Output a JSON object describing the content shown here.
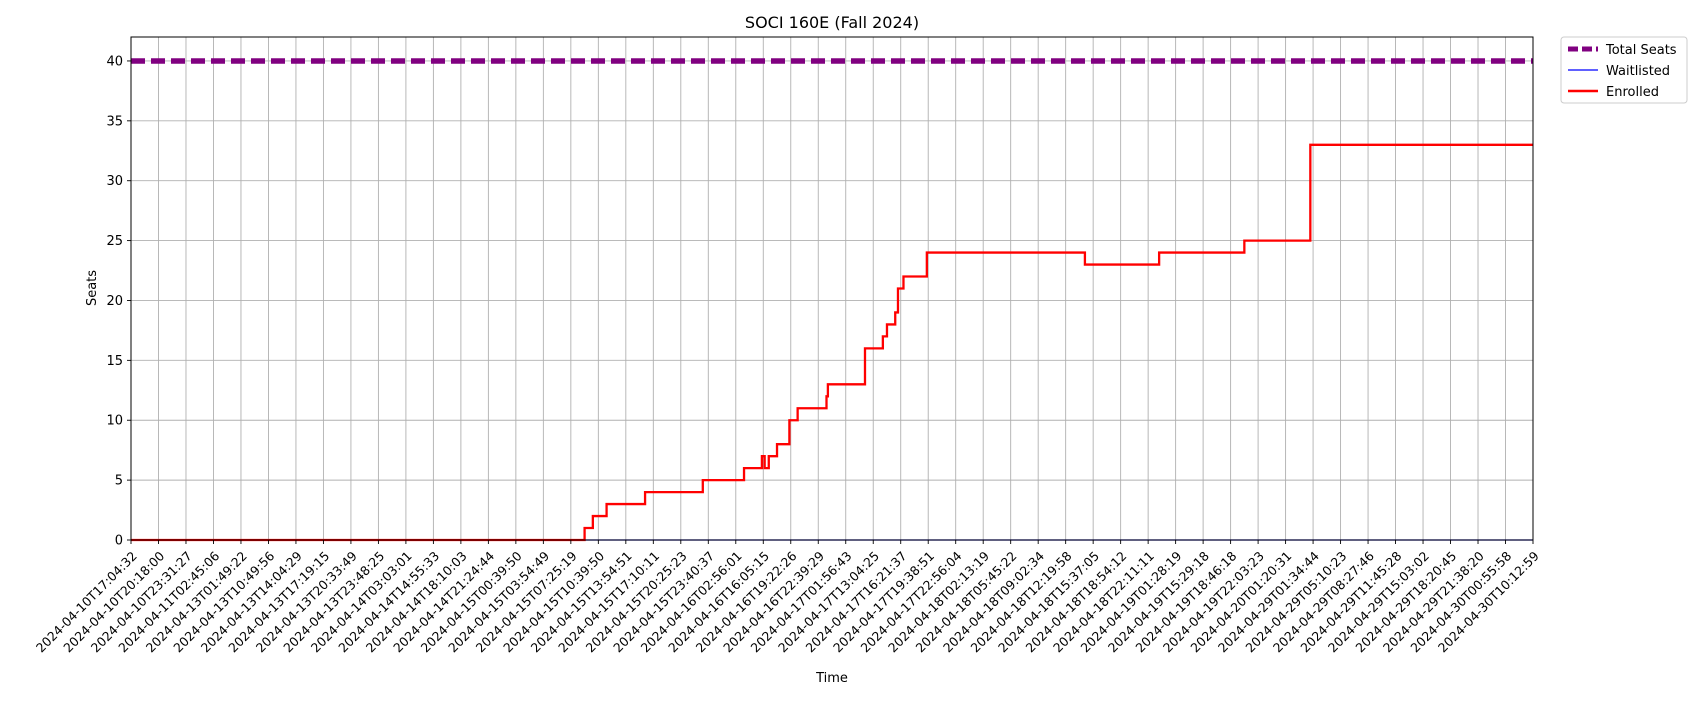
{
  "chart_data": {
    "type": "line",
    "title": "SOCI 160E (Fall 2024)",
    "xlabel": "Time",
    "ylabel": "Seats",
    "ylim": [
      0,
      42
    ],
    "yticks": [
      0,
      5,
      10,
      15,
      20,
      25,
      30,
      35,
      40
    ],
    "grid": true,
    "legend_position": "outside-top-right",
    "x_tick_labels": [
      "2024-04-10T17:04:32",
      "2024-04-10T20:18:00",
      "2024-04-10T23:31:27",
      "2024-04-11T02:45:06",
      "2024-04-13T01:49:22",
      "2024-04-13T10:49:56",
      "2024-04-13T14:04:29",
      "2024-04-13T17:19:15",
      "2024-04-13T20:33:49",
      "2024-04-13T23:48:25",
      "2024-04-14T03:03:01",
      "2024-04-14T14:55:33",
      "2024-04-14T18:10:03",
      "2024-04-14T21:24:44",
      "2024-04-15T00:39:50",
      "2024-04-15T03:54:49",
      "2024-04-15T07:25:19",
      "2024-04-15T10:39:50",
      "2024-04-15T13:54:51",
      "2024-04-15T17:10:11",
      "2024-04-15T20:25:23",
      "2024-04-15T23:40:37",
      "2024-04-16T02:56:01",
      "2024-04-16T16:05:15",
      "2024-04-16T19:22:26",
      "2024-04-16T22:39:29",
      "2024-04-17T01:56:43",
      "2024-04-17T13:04:25",
      "2024-04-17T16:21:37",
      "2024-04-17T19:38:51",
      "2024-04-17T22:56:04",
      "2024-04-18T02:13:19",
      "2024-04-18T05:45:22",
      "2024-04-18T09:02:34",
      "2024-04-18T12:19:58",
      "2024-04-18T15:37:05",
      "2024-04-18T18:54:12",
      "2024-04-18T22:11:11",
      "2024-04-19T01:28:19",
      "2024-04-19T15:29:18",
      "2024-04-19T18:46:18",
      "2024-04-19T22:03:23",
      "2024-04-20T01:20:31",
      "2024-04-29T01:34:44",
      "2024-04-29T05:10:23",
      "2024-04-29T08:27:46",
      "2024-04-29T11:45:28",
      "2024-04-29T15:03:02",
      "2024-04-29T18:20:45",
      "2024-04-29T21:38:20",
      "2024-04-30T00:55:58",
      "2024-04-30T10:12:59"
    ],
    "series": [
      {
        "name": "Total Seats",
        "color": "#800080",
        "style": "dashed",
        "points": [
          [
            0,
            40
          ],
          [
            51,
            40
          ]
        ]
      },
      {
        "name": "Waitlisted",
        "color": "#0000ff",
        "style": "solid",
        "points": [
          [
            0,
            0
          ],
          [
            51,
            0
          ]
        ]
      },
      {
        "name": "Enrolled",
        "color": "#ff0000",
        "style": "step",
        "points": [
          [
            0,
            0
          ],
          [
            16.5,
            0
          ],
          [
            16.5,
            1
          ],
          [
            16.8,
            1
          ],
          [
            16.8,
            2
          ],
          [
            17.3,
            2
          ],
          [
            17.3,
            3
          ],
          [
            18.7,
            3
          ],
          [
            18.7,
            4
          ],
          [
            20.8,
            4
          ],
          [
            20.8,
            5
          ],
          [
            22.3,
            5
          ],
          [
            22.3,
            6
          ],
          [
            22.95,
            6
          ],
          [
            22.95,
            7
          ],
          [
            23.05,
            7
          ],
          [
            23.05,
            6
          ],
          [
            23.2,
            6
          ],
          [
            23.2,
            7
          ],
          [
            23.5,
            7
          ],
          [
            23.5,
            8
          ],
          [
            23.95,
            8
          ],
          [
            23.95,
            10
          ],
          [
            24.25,
            10
          ],
          [
            24.25,
            11
          ],
          [
            25.3,
            11
          ],
          [
            25.3,
            12
          ],
          [
            25.35,
            12
          ],
          [
            25.35,
            13
          ],
          [
            26.7,
            13
          ],
          [
            26.7,
            16
          ],
          [
            27.35,
            16
          ],
          [
            27.35,
            17
          ],
          [
            27.5,
            17
          ],
          [
            27.5,
            18
          ],
          [
            27.8,
            18
          ],
          [
            27.8,
            19
          ],
          [
            27.9,
            19
          ],
          [
            27.9,
            21
          ],
          [
            28.1,
            21
          ],
          [
            28.1,
            22
          ],
          [
            28.95,
            22
          ],
          [
            28.95,
            24
          ],
          [
            34.7,
            24
          ],
          [
            34.7,
            23
          ],
          [
            37.4,
            23
          ],
          [
            37.4,
            24
          ],
          [
            40.5,
            24
          ],
          [
            40.5,
            25
          ],
          [
            42.9,
            25
          ],
          [
            42.9,
            33
          ],
          [
            51,
            33
          ]
        ]
      }
    ]
  }
}
